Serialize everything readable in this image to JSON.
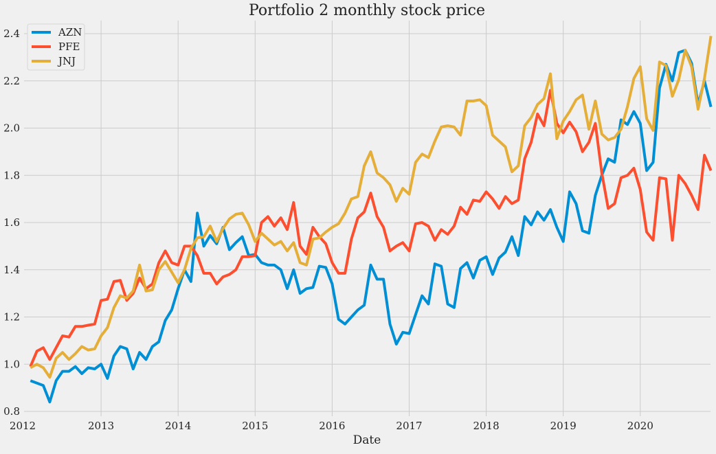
{
  "chart_data": {
    "type": "line",
    "title": "Portfolio 2 monthly stock price",
    "xlabel": "Date",
    "ylabel": "",
    "ylim": [
      0.8,
      2.45
    ],
    "xlim": [
      "2012-01",
      "2020-11"
    ],
    "x_ticks": [
      "2012",
      "2013",
      "2014",
      "2015",
      "2016",
      "2017",
      "2018",
      "2019",
      "2020"
    ],
    "y_ticks": [
      "0.8",
      "1.0",
      "1.2",
      "1.4",
      "1.6",
      "1.8",
      "2.0",
      "2.2",
      "2.4"
    ],
    "grid": true,
    "legend_position": "top-left",
    "x_start": "2012-01",
    "x_frequency": "monthly",
    "series": [
      {
        "name": "AZN",
        "color": "#008fd5",
        "values": [
          0.93,
          0.92,
          0.91,
          0.84,
          0.93,
          0.97,
          0.97,
          0.99,
          0.96,
          0.985,
          0.98,
          1.0,
          0.94,
          1.035,
          1.075,
          1.065,
          0.98,
          1.05,
          1.02,
          1.075,
          1.095,
          1.185,
          1.23,
          1.32,
          1.4,
          1.35,
          1.64,
          1.5,
          1.545,
          1.51,
          1.58,
          1.485,
          1.515,
          1.54,
          1.46,
          1.465,
          1.43,
          1.42,
          1.42,
          1.4,
          1.32,
          1.4,
          1.3,
          1.32,
          1.325,
          1.415,
          1.41,
          1.34,
          1.19,
          1.17,
          1.2,
          1.23,
          1.25,
          1.42,
          1.36,
          1.36,
          1.17,
          1.085,
          1.135,
          1.13,
          1.21,
          1.29,
          1.255,
          1.425,
          1.415,
          1.255,
          1.24,
          1.405,
          1.43,
          1.365,
          1.44,
          1.455,
          1.38,
          1.45,
          1.475,
          1.54,
          1.46,
          1.625,
          1.59,
          1.645,
          1.61,
          1.655,
          1.58,
          1.52,
          1.73,
          1.68,
          1.565,
          1.555,
          1.715,
          1.8,
          1.87,
          1.855,
          2.035,
          2.015,
          2.07,
          2.02,
          1.82,
          1.855,
          2.17,
          2.27,
          2.2,
          2.32,
          2.33,
          2.275,
          2.1,
          2.2,
          2.09
        ]
      },
      {
        "name": "PFE",
        "color": "#fc4f30",
        "values": [
          0.99,
          1.055,
          1.07,
          1.02,
          1.07,
          1.12,
          1.115,
          1.16,
          1.16,
          1.165,
          1.17,
          1.27,
          1.275,
          1.35,
          1.355,
          1.27,
          1.3,
          1.365,
          1.32,
          1.34,
          1.43,
          1.48,
          1.43,
          1.42,
          1.5,
          1.5,
          1.46,
          1.385,
          1.385,
          1.34,
          1.37,
          1.38,
          1.4,
          1.455,
          1.455,
          1.46,
          1.6,
          1.625,
          1.585,
          1.62,
          1.57,
          1.685,
          1.5,
          1.465,
          1.58,
          1.54,
          1.51,
          1.43,
          1.385,
          1.385,
          1.53,
          1.62,
          1.645,
          1.725,
          1.625,
          1.58,
          1.48,
          1.5,
          1.515,
          1.48,
          1.595,
          1.6,
          1.585,
          1.525,
          1.57,
          1.55,
          1.585,
          1.665,
          1.635,
          1.695,
          1.69,
          1.73,
          1.7,
          1.66,
          1.71,
          1.68,
          1.695,
          1.87,
          1.94,
          2.06,
          2.01,
          2.16,
          2.02,
          1.98,
          2.025,
          1.985,
          1.9,
          1.94,
          2.02,
          1.81,
          1.66,
          1.68,
          1.79,
          1.8,
          1.83,
          1.74,
          1.56,
          1.525,
          1.79,
          1.785,
          1.525,
          1.8,
          1.765,
          1.715,
          1.655,
          1.885,
          1.82
        ]
      },
      {
        "name": "JNJ",
        "color": "#e5ae38",
        "values": [
          0.985,
          1.0,
          0.985,
          0.945,
          1.025,
          1.05,
          1.02,
          1.045,
          1.075,
          1.06,
          1.065,
          1.12,
          1.155,
          1.24,
          1.29,
          1.28,
          1.31,
          1.42,
          1.31,
          1.315,
          1.4,
          1.435,
          1.39,
          1.345,
          1.4,
          1.49,
          1.535,
          1.54,
          1.585,
          1.52,
          1.575,
          1.615,
          1.635,
          1.64,
          1.59,
          1.52,
          1.555,
          1.53,
          1.505,
          1.52,
          1.48,
          1.515,
          1.43,
          1.42,
          1.53,
          1.535,
          1.56,
          1.58,
          1.595,
          1.64,
          1.7,
          1.71,
          1.84,
          1.9,
          1.81,
          1.79,
          1.76,
          1.69,
          1.745,
          1.72,
          1.855,
          1.89,
          1.875,
          1.945,
          2.005,
          2.01,
          2.005,
          1.97,
          2.115,
          2.115,
          2.12,
          2.095,
          1.97,
          1.945,
          1.92,
          1.815,
          1.84,
          2.01,
          2.045,
          2.1,
          2.125,
          2.23,
          1.955,
          2.03,
          2.07,
          2.12,
          2.14,
          1.995,
          2.115,
          1.975,
          1.95,
          1.96,
          1.995,
          2.09,
          2.21,
          2.26,
          2.04,
          1.99,
          2.28,
          2.265,
          2.135,
          2.205,
          2.33,
          2.26,
          2.08,
          2.21,
          2.39
        ]
      }
    ]
  }
}
